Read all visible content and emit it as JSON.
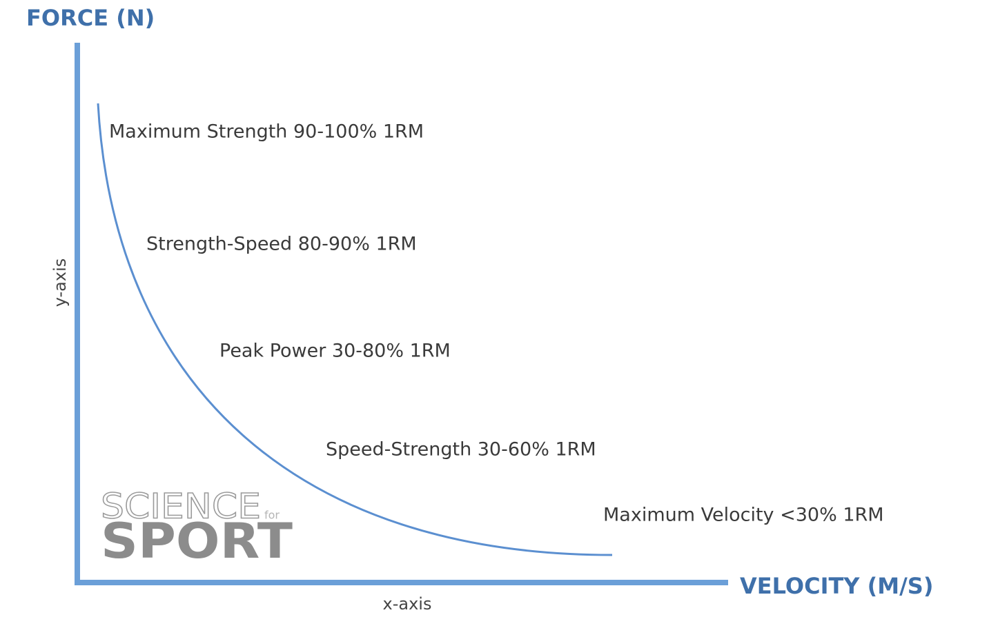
{
  "axes": {
    "y_title": "FORCE (N)",
    "x_title": "VELOCITY (M/S)",
    "y_label": "y-axis",
    "x_label": "x-axis"
  },
  "zones": [
    {
      "label": "Maximum Strength 90-100% 1RM"
    },
    {
      "label": "Strength-Speed 80-90% 1RM"
    },
    {
      "label": "Peak Power 30-80% 1RM"
    },
    {
      "label": "Speed-Strength 30-60% 1RM"
    },
    {
      "label": "Maximum Velocity <30% 1RM"
    }
  ],
  "logo": {
    "line1": "SCIENCE",
    "small": "for",
    "line2": "SPORT"
  }
}
